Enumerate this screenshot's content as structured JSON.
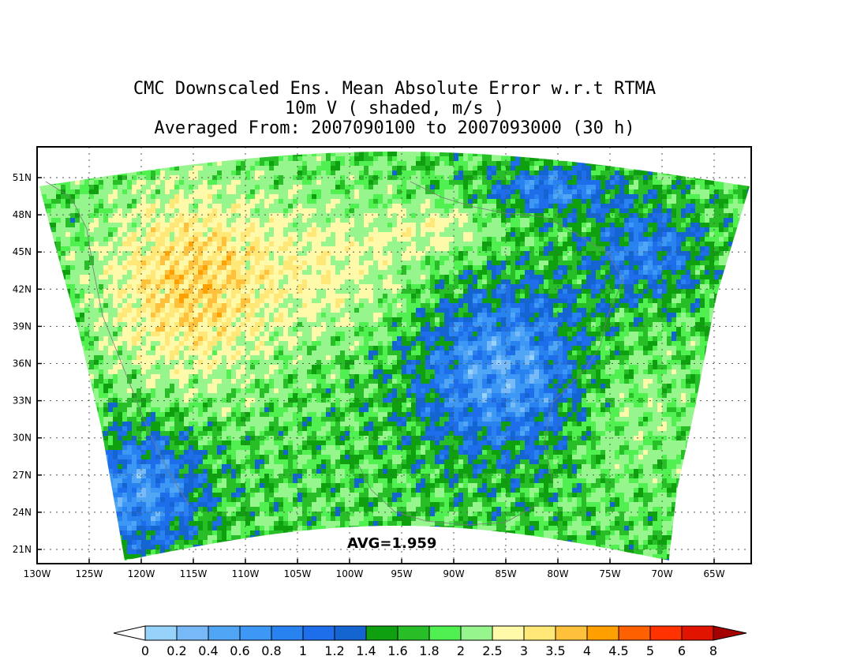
{
  "title": {
    "line1": "CMC Downscaled Ens. Mean Absolute Error w.r.t RTMA",
    "line2": "10m V ( shaded, m/s )",
    "line3": "Averaged From: 2007090100 to 2007093000 (30 h)"
  },
  "map": {
    "lat_ticks": [
      "51N",
      "48N",
      "45N",
      "42N",
      "39N",
      "36N",
      "33N",
      "30N",
      "27N",
      "24N",
      "21N"
    ],
    "lon_ticks": [
      "130W",
      "125W",
      "120W",
      "115W",
      "110W",
      "105W",
      "100W",
      "95W",
      "90W",
      "85W",
      "80W",
      "75W",
      "70W",
      "65W"
    ],
    "avg_label": "AVG=1.959"
  },
  "colorbar": {
    "labels": [
      "0",
      "0.2",
      "0.4",
      "0.6",
      "0.8",
      "1",
      "1.2",
      "1.4",
      "1.6",
      "1.8",
      "2",
      "2.5",
      "3",
      "3.5",
      "4",
      "4.5",
      "5",
      "6",
      "8"
    ],
    "colors": [
      "#96d2fa",
      "#78b9fa",
      "#50a5f5",
      "#3c97f5",
      "#2882f0",
      "#1e6eeb",
      "#1464d2",
      "#0fa00f",
      "#28be28",
      "#50f050",
      "#96f58c",
      "#fffaaa",
      "#ffe878",
      "#ffc03c",
      "#ffa000",
      "#ff6000",
      "#ff3200",
      "#e11400",
      "#a50000"
    ],
    "under_color": "#ffffff"
  }
}
